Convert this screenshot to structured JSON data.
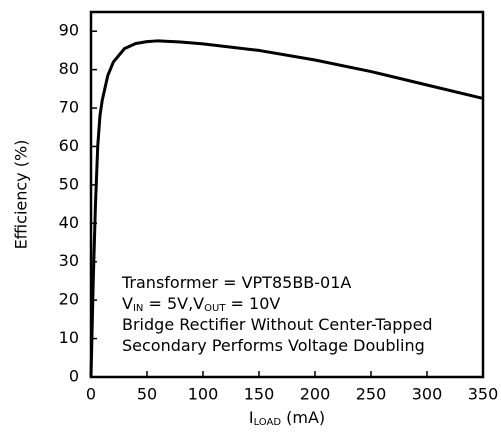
{
  "chart_data": {
    "type": "line",
    "x_label": [
      "I",
      "LOAD",
      " (mA)"
    ],
    "y_label": "Efficiency (%)",
    "x": [
      0,
      2,
      4,
      6,
      8,
      10,
      15,
      20,
      30,
      40,
      50,
      60,
      80,
      100,
      150,
      200,
      250,
      300,
      350
    ],
    "series": [
      {
        "color": "#000000",
        "values": [
          0,
          25,
          45,
          60,
          68,
          72,
          78.5,
          82,
          85.5,
          86.8,
          87.3,
          87.5,
          87.2,
          86.7,
          85,
          82.5,
          79.5,
          76,
          72.5
        ]
      }
    ],
    "xlim": [
      0,
      350
    ],
    "xticks": [
      0,
      50,
      100,
      150,
      200,
      250,
      300,
      350
    ],
    "ylim": [
      0,
      95
    ],
    "yticks": [
      0,
      10,
      20,
      30,
      40,
      50,
      60,
      70,
      80,
      90
    ],
    "grid": false,
    "annotations": [
      [
        "Transformer = VPT85BB-01A"
      ],
      [
        "V",
        "IN",
        " = 5V,V",
        "OUT",
        " = 10V"
      ],
      [
        "Bridge Rectifier Without Center-Tapped"
      ],
      [
        "Secondary Performs Voltage Doubling"
      ]
    ]
  }
}
